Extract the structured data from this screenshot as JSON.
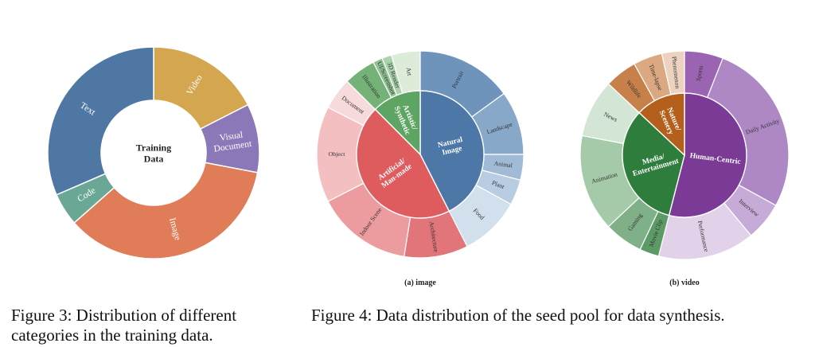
{
  "figure3": {
    "caption": "Figure 3: Distribution of different categories in the training data.",
    "chart_data": {
      "type": "pie",
      "center_label": [
        "Training",
        "Data"
      ],
      "slices": [
        {
          "label": "Video",
          "value": 17.5,
          "color": "#d3a64f"
        },
        {
          "label": "Visual Document",
          "value": 10.5,
          "color": "#8b78b8"
        },
        {
          "label": "Image",
          "value": 35.5,
          "color": "#e07c57"
        },
        {
          "label": "Code",
          "value": 5.0,
          "color": "#6aa895"
        },
        {
          "label": "Text",
          "value": 31.5,
          "color": "#4e77a4"
        }
      ]
    }
  },
  "figure4": {
    "caption": "Figure 4: Data distribution of the seed pool for data synthesis.",
    "subplots": [
      {
        "sublabel": "(a) image",
        "chart_data": {
          "type": "pie",
          "inner": [
            {
              "label": "Natural Image",
              "value": 42.5,
              "color": "#4c77a6"
            },
            {
              "label": "Artificial/ Man-made",
              "value": 45,
              "color": "#de5b5e"
            },
            {
              "label": "Artistic/ Synthetic",
              "value": 12.5,
              "color": "#5ea463"
            }
          ],
          "outer": [
            {
              "label": "Portrait",
              "value": 15,
              "color": "#6f94bc",
              "parent": "Natural Image"
            },
            {
              "label": "Landscape",
              "value": 10,
              "color": "#87a8c9",
              "parent": "Natural Image"
            },
            {
              "label": "Animal",
              "value": 4,
              "color": "#a1bbd6",
              "parent": "Natural Image"
            },
            {
              "label": "Plant",
              "value": 4,
              "color": "#b8cde2",
              "parent": "Natural Image"
            },
            {
              "label": "Food",
              "value": 9.5,
              "color": "#d2dfec",
              "parent": "Natural Image"
            },
            {
              "label": "Architecture",
              "value": 10,
              "color": "#e27579",
              "parent": "Artificial/ Man-made"
            },
            {
              "label": "Indoor Scene",
              "value": 15,
              "color": "#ec9b9e",
              "parent": "Artificial/ Man-made"
            },
            {
              "label": "Object",
              "value": 15,
              "color": "#f3bfc1",
              "parent": "Artificial/ Man-made"
            },
            {
              "label": "Document",
              "value": 5,
              "color": "#f7dadb",
              "parent": "Artificial/ Man-made"
            },
            {
              "label": "Illustration",
              "value": 5,
              "color": "#74b278",
              "parent": "Artistic/ Synthetic"
            },
            {
              "label": "UI/Screenshot",
              "value": 1.5,
              "color": "#8fc292",
              "parent": "Artistic/ Synthetic"
            },
            {
              "label": "3D Render",
              "value": 1.5,
              "color": "#aad2ab",
              "parent": "Artistic/ Synthetic"
            },
            {
              "label": "Art",
              "value": 4.5,
              "color": "#dcecd9",
              "parent": "Artistic/ Synthetic"
            }
          ]
        }
      },
      {
        "sublabel": "(b) video",
        "chart_data": {
          "type": "pie",
          "inner": [
            {
              "label": "Human-Centric",
              "value": 54,
              "color": "#7a3a96"
            },
            {
              "label": "Media/ Entertainment",
              "value": 33,
              "color": "#2f7d3d"
            },
            {
              "label": "Nature/ Scenery",
              "value": 13,
              "color": "#b45f1b"
            }
          ],
          "outer": [
            {
              "label": "Sports",
              "value": 6,
              "color": "#9a64b3",
              "parent": "Human-Centric"
            },
            {
              "label": "Daily Activity",
              "value": 27,
              "color": "#ad88c4",
              "parent": "Human-Centric"
            },
            {
              "label": "Interview",
              "value": 6,
              "color": "#c6abd8",
              "parent": "Human-Centric"
            },
            {
              "label": "Performance",
              "value": 15,
              "color": "#e1d2ea",
              "parent": "Human-Centric"
            },
            {
              "label": "Movie Clip",
              "value": 3,
              "color": "#5c9a67",
              "parent": "Media/ Entertainment"
            },
            {
              "label": "Gaming",
              "value": 6,
              "color": "#7fb088",
              "parent": "Media/ Entertainment"
            },
            {
              "label": "Animation",
              "value": 15,
              "color": "#a4caaa",
              "parent": "Media/ Entertainment"
            },
            {
              "label": "News",
              "value": 9,
              "color": "#d3e6d5",
              "parent": "Media/ Entertainment"
            },
            {
              "label": "Wildlife",
              "value": 5,
              "color": "#c7804a",
              "parent": "Nature/ Scenery"
            },
            {
              "label": "Time-lapse",
              "value": 4.5,
              "color": "#dba882",
              "parent": "Nature/ Scenery"
            },
            {
              "label": "Phenomenon",
              "value": 3.5,
              "color": "#edd3bf",
              "parent": "Nature/ Scenery"
            }
          ]
        }
      }
    ]
  }
}
